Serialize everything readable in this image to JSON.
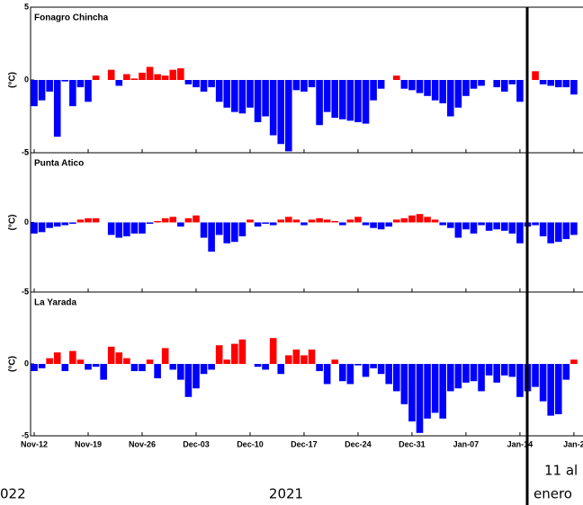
{
  "chart_data": [
    {
      "type": "bar",
      "title": "Fonagro Chincha",
      "ylabel": "(°C)",
      "ylim": [
        -5,
        5
      ],
      "yticks": [
        -5,
        0,
        5
      ],
      "colors": {
        "positive": "#ff0000",
        "negative": "#0000ff"
      },
      "values": [
        -1.8,
        -1.4,
        -0.8,
        -3.9,
        -0.1,
        -1.8,
        -0.5,
        -1.5,
        0.3,
        0,
        0.7,
        -0.4,
        0.4,
        0.1,
        0.5,
        0.9,
        0.4,
        0.3,
        0.7,
        0.8,
        -0.3,
        -0.5,
        -0.8,
        -0.5,
        -1.5,
        -1.9,
        -2.2,
        -2.3,
        -1.9,
        -2.9,
        -2.5,
        -3.8,
        -4.4,
        -4.9,
        -0.7,
        -0.8,
        -0.5,
        -3.1,
        -2.2,
        -2.6,
        -2.7,
        -2.8,
        -2.9,
        -3.0,
        -1.4,
        -0.6,
        0,
        0.3,
        -0.6,
        -0.7,
        -0.9,
        -1.1,
        -1.4,
        -1.6,
        -2.5,
        -1.9,
        -1.1,
        -0.6,
        -0.4,
        0,
        -0.5,
        -0.8,
        -0.3,
        -1.5,
        0,
        0.6,
        -0.3,
        -0.4,
        -0.5,
        -0.5,
        -1.0
      ]
    },
    {
      "type": "bar",
      "title": "Punta Atico",
      "ylabel": "(°C)",
      "ylim": [
        -5,
        5
      ],
      "yticks": [
        -5,
        0,
        5
      ],
      "colors": {
        "positive": "#ff0000",
        "negative": "#0000ff"
      },
      "values": [
        -0.8,
        -0.7,
        -0.4,
        -0.3,
        -0.2,
        -0.1,
        0.2,
        0.3,
        0.3,
        0,
        -0.9,
        -1.1,
        -1.0,
        -0.8,
        -0.8,
        -0.1,
        0.1,
        0.3,
        0.4,
        -0.3,
        0.3,
        0.5,
        -1.1,
        -2.1,
        -0.9,
        -1.5,
        -1.4,
        -1.0,
        0.2,
        -0.3,
        -0.1,
        -0.2,
        0.2,
        0.4,
        0.2,
        -0.2,
        0.2,
        0.3,
        0.2,
        0.1,
        -0.2,
        0.2,
        0.4,
        -0.2,
        -0.4,
        -0.5,
        -0.3,
        0.2,
        0.3,
        0.5,
        0.6,
        0.4,
        0.2,
        -0.2,
        -0.4,
        -1.1,
        -0.5,
        -0.8,
        -0.2,
        -0.6,
        -0.5,
        -0.6,
        -0.8,
        -1.5,
        -0.3,
        -0.2,
        -1.0,
        -1.5,
        -1.4,
        -1.2,
        -0.9
      ]
    },
    {
      "type": "bar",
      "title": "La Yarada",
      "ylabel": "(°C)",
      "ylim": [
        -5,
        5
      ],
      "yticks": [
        -5,
        0,
        5
      ],
      "colors": {
        "positive": "#ff0000",
        "negative": "#0000ff"
      },
      "categories": [
        "Nov-12",
        null,
        null,
        null,
        null,
        null,
        null,
        "Nov-19",
        null,
        null,
        null,
        null,
        null,
        null,
        "Nov-26",
        null,
        null,
        null,
        null,
        null,
        null,
        "Dec-03",
        null,
        null,
        null,
        null,
        null,
        null,
        "Dec-10",
        null,
        null,
        null,
        null,
        null,
        null,
        "Dec-17",
        null,
        null,
        null,
        null,
        null,
        null,
        "Dec-24",
        null,
        null,
        null,
        null,
        null,
        null,
        "Dec-31",
        null,
        null,
        null,
        null,
        null,
        null,
        "Jan-07",
        null,
        null,
        null,
        null,
        null,
        null,
        "Jan-14",
        null,
        null,
        null,
        null,
        null,
        null,
        "Jan-2"
      ],
      "values": [
        -0.5,
        -0.3,
        0.4,
        0.8,
        -0.5,
        0.9,
        0.3,
        -0.4,
        -0.2,
        -1.1,
        1.2,
        0.8,
        0.4,
        -0.5,
        -0.5,
        0.3,
        -1.0,
        1.1,
        -0.4,
        -1.1,
        -2.3,
        -1.7,
        -0.7,
        -0.4,
        1.3,
        0.3,
        1.4,
        1.7,
        0,
        -0.2,
        -0.4,
        1.8,
        -0.7,
        0.6,
        1.0,
        0.6,
        1.0,
        -0.5,
        -1.4,
        0.3,
        -1.2,
        -1.4,
        -0.1,
        -0.9,
        -0.3,
        -0.7,
        -1.4,
        -1.9,
        -2.8,
        -4.0,
        -4.8,
        -3.8,
        -3.4,
        -3.8,
        -1.9,
        -1.7,
        -1.3,
        -1.2,
        -1.9,
        -0.8,
        -1.3,
        -0.8,
        -0.9,
        -2.3,
        -1.9,
        -1.6,
        -2.6,
        -3.6,
        -3.5,
        -1.1,
        0.3
      ]
    }
  ],
  "annotations": {
    "left": "022",
    "center": "2021",
    "right_top": "11 al",
    "right_bottom": "enero"
  }
}
